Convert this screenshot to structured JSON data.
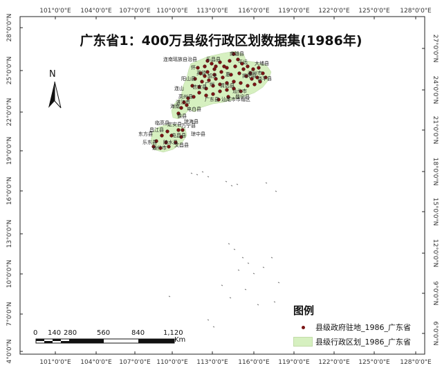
{
  "title": "广东省1：400万县级行政区划数据集(1986年)",
  "north_arrow_label": "N",
  "graticule": {
    "top_labels": [
      "101°0'0\"E",
      "104°0'0\"E",
      "107°0'0\"E",
      "110°0'0\"E",
      "113°0'0\"E",
      "116°0'0\"E",
      "119°0'0\"E",
      "122°0'0\"E",
      "125°0'0\"E",
      "128°0'0\"E"
    ],
    "bottom_labels": [
      "101°0'0\"E",
      "104°0'0\"E",
      "107°0'0\"E",
      "110°0'0\"E",
      "113°0'0\"E",
      "116°0'0\"E",
      "119°0'0\"E",
      "122°0'0\"E",
      "125°0'0\"E",
      "128°0'0\"E"
    ],
    "left_labels": [
      "28°0'0\"N",
      "25°0'0\"N",
      "22°0'0\"N",
      "19°0'0\"N",
      "16°0'0\"N",
      "13°0'0\"N",
      "10°0'0\"N",
      "7°0'0\"N",
      "4°0'0\"N"
    ],
    "right_labels": [
      "27°0'0\"N",
      "24°0'0\"N",
      "21°0'0\"N",
      "18°0'0\"N",
      "15°0'0\"N",
      "12°0'0\"N",
      "9°0'0\"N",
      "6°0'0\"N"
    ]
  },
  "place_labels": [
    "南雄县",
    "连南瑶族自治县",
    "乐昌县",
    "平远",
    "大埔县",
    "怀",
    "潮州市",
    "英德",
    "韶关",
    "惠",
    "揭阳县",
    "饶平县",
    "广州",
    "阳山县",
    "清远县",
    "连山",
    "信宜县",
    "汕头市",
    "高州县",
    "普宁县",
    "湛江市",
    "广东县",
    "海南",
    "东方县",
    "乐东县",
    "陵水县",
    "电白县",
    "儋县",
    "琼海县",
    "万宁县",
    "昌江县",
    "临高县",
    "定安县",
    "屯昌县",
    "琼中县",
    "汕尾市市辖区",
    "文昌县",
    "通什市"
  ],
  "legend": {
    "title": "图例",
    "items": [
      {
        "label": "县级政府驻地_1986_广东省",
        "symbol": "point",
        "color": "#7a1515"
      },
      {
        "label": "县级行政区划_1986_广东省",
        "symbol": "polygon",
        "color": "#d6f0c0"
      }
    ]
  },
  "scale_bar": {
    "ticks": [
      "0",
      "140",
      "280",
      "560",
      "840",
      "1,120"
    ],
    "unit": "Km"
  },
  "colors": {
    "land_fill": "#d6f0c0",
    "seat_point": "#7a1515",
    "frame": "#222222"
  }
}
